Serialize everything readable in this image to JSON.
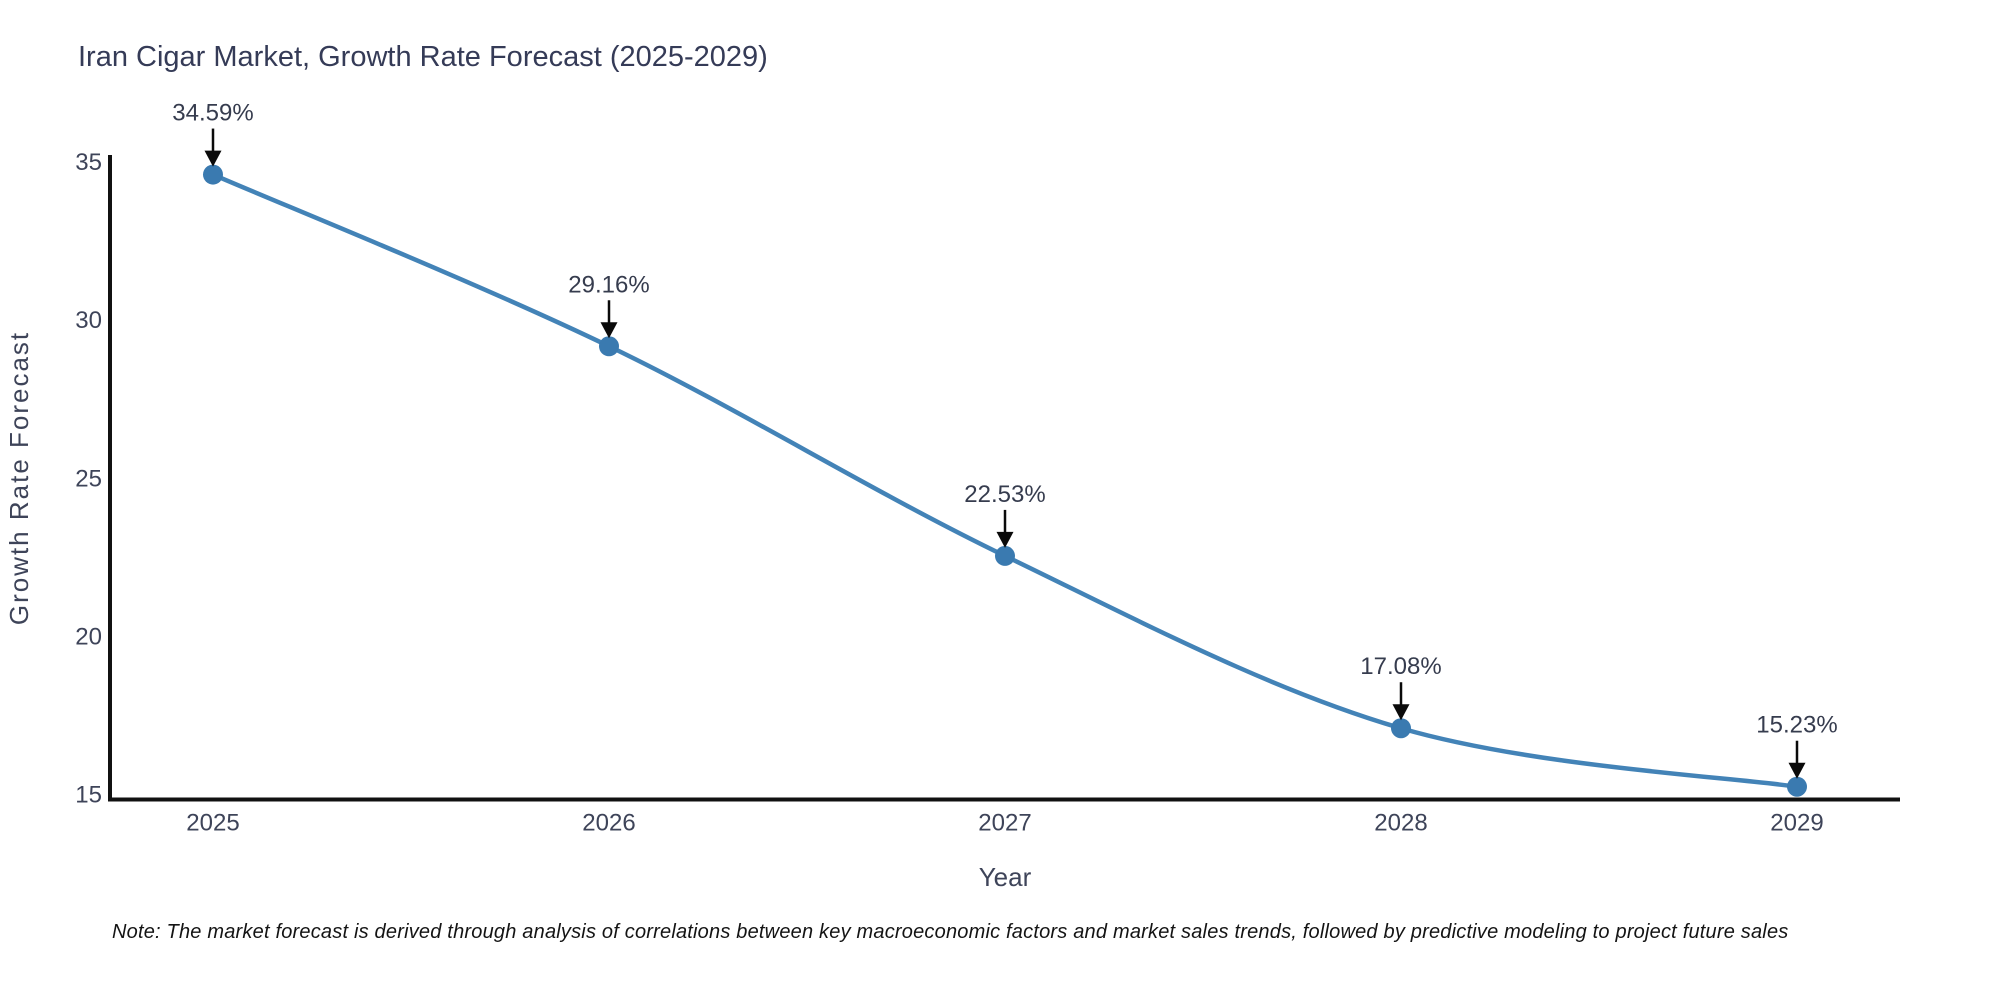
{
  "chart": {
    "title": "Iran Cigar Market, Growth Rate Forecast (2025-2029)",
    "xlabel": "Year",
    "ylabel": "Growth Rate Forecast"
  },
  "chart_data": {
    "type": "line",
    "line_shape": "spline",
    "x": [
      2025,
      2026,
      2027,
      2028,
      2029
    ],
    "xticks": [
      "2025",
      "2026",
      "2027",
      "2028",
      "2029"
    ],
    "series": [
      {
        "name": "Growth Rate Forecast",
        "values": [
          34.59,
          29.16,
          22.53,
          17.08,
          15.23
        ]
      }
    ],
    "point_labels": [
      "34.59%",
      "29.16%",
      "22.53%",
      "17.08%",
      "15.23%"
    ],
    "title": "Iran Cigar Market, Growth Rate Forecast (2025-2029)",
    "xlabel": "Year",
    "ylabel": "Growth Rate Forecast",
    "ylim": [
      15,
      35
    ],
    "yticks": [
      15,
      20,
      25,
      30,
      35
    ],
    "ytick_labels": [
      "15",
      "20",
      "25",
      "30",
      "35"
    ],
    "grid": false,
    "legend_position": "none",
    "annotations_have_arrows": true,
    "colors": {
      "line": "#4383b7",
      "marker": "#3a7ab0",
      "axis_spine": "#111111",
      "tick_text": "#3e4459",
      "title_text": "#353b57",
      "axis_title_text": "#3e4459",
      "annotation_text": "#363c4e",
      "arrow": "#0a0a0a",
      "note_text": "#141414",
      "background": "#ffffff"
    }
  },
  "note": {
    "text": "Note: The market forecast is derived through analysis of correlations between key macroeconomic factors and market sales trends, followed by predictive modeling to project future sales"
  }
}
